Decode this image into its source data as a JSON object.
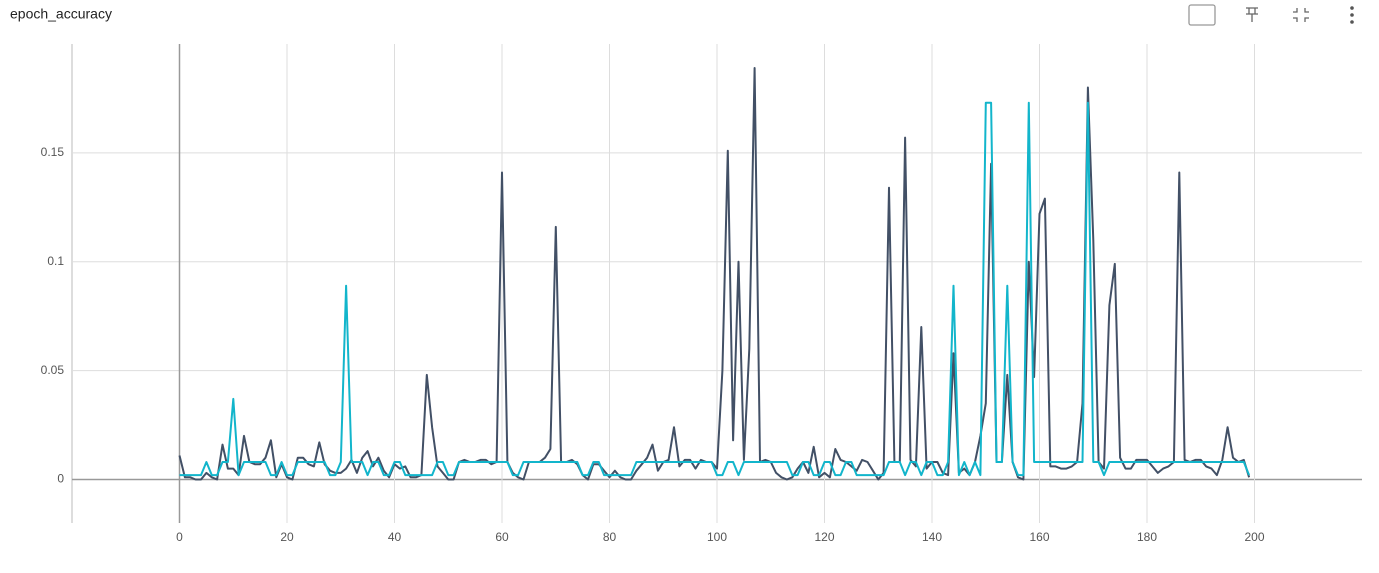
{
  "chart_data": {
    "type": "line",
    "title": "epoch_accuracy",
    "x": [
      0,
      1,
      2,
      3,
      4,
      5,
      6,
      7,
      8,
      9,
      10,
      11,
      12,
      13,
      14,
      15,
      16,
      17,
      18,
      19,
      20,
      21,
      22,
      23,
      24,
      25,
      26,
      27,
      28,
      29,
      30,
      31,
      32,
      33,
      34,
      35,
      36,
      37,
      38,
      39,
      40,
      41,
      42,
      43,
      44,
      45,
      46,
      47,
      48,
      49,
      50,
      51,
      52,
      53,
      54,
      55,
      56,
      57,
      58,
      59,
      60,
      61,
      62,
      63,
      64,
      65,
      66,
      67,
      68,
      69,
      70,
      71,
      72,
      73,
      74,
      75,
      76,
      77,
      78,
      79,
      80,
      81,
      82,
      83,
      84,
      85,
      86,
      87,
      88,
      89,
      90,
      91,
      92,
      93,
      94,
      95,
      96,
      97,
      98,
      99,
      100,
      101,
      102,
      103,
      104,
      105,
      106,
      107,
      108,
      109,
      110,
      111,
      112,
      113,
      114,
      115,
      116,
      117,
      118,
      119,
      120,
      121,
      122,
      123,
      124,
      125,
      126,
      127,
      128,
      129,
      130,
      131,
      132,
      133,
      134,
      135,
      136,
      137,
      138,
      139,
      140,
      141,
      142,
      143,
      144,
      145,
      146,
      147,
      148,
      149,
      150,
      151,
      152,
      153,
      154,
      155,
      156,
      157,
      158,
      159,
      160,
      161,
      162,
      163,
      164,
      165,
      166,
      167,
      168,
      169,
      170,
      171,
      172,
      173,
      174,
      175,
      176,
      177,
      178,
      179,
      180,
      181,
      182,
      183,
      184,
      185,
      186,
      187,
      188,
      189,
      190,
      191,
      192,
      193,
      194,
      195,
      196,
      197,
      198,
      199
    ],
    "series": [
      {
        "color": "#425066",
        "values": [
          0.011,
          0.001,
          0.001,
          0,
          0,
          0.003,
          0.001,
          0,
          0.016,
          0.005,
          0.005,
          0.002,
          0.02,
          0.008,
          0.007,
          0.007,
          0.01,
          0.018,
          0.001,
          0.007,
          0.001,
          0,
          0.01,
          0.01,
          0.007,
          0.006,
          0.017,
          0.007,
          0.004,
          0.003,
          0.003,
          0.005,
          0.009,
          0.003,
          0.01,
          0.013,
          0.006,
          0.01,
          0.004,
          0.001,
          0.007,
          0.005,
          0.006,
          0.001,
          0.001,
          0.002,
          0.048,
          0.024,
          0.006,
          0.003,
          0,
          0,
          0.008,
          0.009,
          0.008,
          0.008,
          0.009,
          0.009,
          0.007,
          0.008,
          0.141,
          0.008,
          0.003,
          0.001,
          0,
          0.008,
          0.008,
          0.008,
          0.01,
          0.014,
          0.116,
          0.008,
          0.008,
          0.009,
          0.007,
          0.002,
          0,
          0.007,
          0.007,
          0.004,
          0.001,
          0.004,
          0.001,
          0,
          0,
          0.004,
          0.007,
          0.01,
          0.016,
          0.004,
          0.008,
          0.009,
          0.024,
          0.006,
          0.009,
          0.009,
          0.005,
          0.009,
          0.008,
          0.008,
          0.005,
          0.05,
          0.151,
          0.018,
          0.1,
          0.009,
          0.06,
          0.189,
          0.008,
          0.009,
          0.008,
          0.003,
          0.001,
          0,
          0.001,
          0.005,
          0.008,
          0.003,
          0.015,
          0.001,
          0.003,
          0.001,
          0.014,
          0.009,
          0.008,
          0.006,
          0.004,
          0.009,
          0.008,
          0.004,
          0,
          0.003,
          0.134,
          0.008,
          0.008,
          0.157,
          0.009,
          0.006,
          0.07,
          0.005,
          0.008,
          0.008,
          0.003,
          0.002,
          0.058,
          0.003,
          0.005,
          0.002,
          0.008,
          0.02,
          0.035,
          0.145,
          0.008,
          0.008,
          0.048,
          0.008,
          0.001,
          0,
          0.1,
          0.047,
          0.122,
          0.129,
          0.006,
          0.006,
          0.005,
          0.005,
          0.006,
          0.008,
          0.035,
          0.18,
          0.11,
          0.008,
          0.005,
          0.08,
          0.099,
          0.01,
          0.005,
          0.005,
          0.009,
          0.009,
          0.009,
          0.006,
          0.003,
          0.005,
          0.006,
          0.008,
          0.141,
          0.009,
          0.008,
          0.009,
          0.009,
          0.006,
          0.005,
          0.002,
          0.009,
          0.024,
          0.01,
          0.008,
          0.009,
          0.001
        ]
      },
      {
        "color": "#12b5cb",
        "values": [
          0.002,
          0.002,
          0.002,
          0.002,
          0.002,
          0.008,
          0.002,
          0.002,
          0.008,
          0.008,
          0.037,
          0.002,
          0.008,
          0.008,
          0.008,
          0.008,
          0.008,
          0.002,
          0.002,
          0.008,
          0.002,
          0.002,
          0.008,
          0.008,
          0.008,
          0.008,
          0.008,
          0.008,
          0.002,
          0.002,
          0.008,
          0.089,
          0.008,
          0.008,
          0.008,
          0.002,
          0.008,
          0.008,
          0.002,
          0.002,
          0.008,
          0.008,
          0.002,
          0.002,
          0.002,
          0.002,
          0.002,
          0.002,
          0.008,
          0.008,
          0.002,
          0.002,
          0.008,
          0.008,
          0.008,
          0.008,
          0.008,
          0.008,
          0.008,
          0.008,
          0.008,
          0.008,
          0.002,
          0.002,
          0.008,
          0.008,
          0.008,
          0.008,
          0.008,
          0.008,
          0.008,
          0.008,
          0.008,
          0.008,
          0.008,
          0.002,
          0.002,
          0.008,
          0.008,
          0.002,
          0.002,
          0.002,
          0.002,
          0.002,
          0.002,
          0.008,
          0.008,
          0.008,
          0.008,
          0.008,
          0.008,
          0.008,
          0.008,
          0.008,
          0.008,
          0.008,
          0.008,
          0.008,
          0.008,
          0.008,
          0.002,
          0.002,
          0.008,
          0.008,
          0.002,
          0.008,
          0.008,
          0.008,
          0.008,
          0.008,
          0.008,
          0.008,
          0.008,
          0.008,
          0.002,
          0.002,
          0.008,
          0.008,
          0.002,
          0.002,
          0.008,
          0.008,
          0.002,
          0.002,
          0.008,
          0.008,
          0.002,
          0.002,
          0.002,
          0.002,
          0.002,
          0.002,
          0.008,
          0.008,
          0.008,
          0.002,
          0.008,
          0.008,
          0.002,
          0.008,
          0.008,
          0.002,
          0.002,
          0.008,
          0.089,
          0.002,
          0.008,
          0.002,
          0.008,
          0.002,
          0.173,
          0.173,
          0.008,
          0.008,
          0.089,
          0.008,
          0.002,
          0.002,
          0.173,
          0.008,
          0.008,
          0.008,
          0.008,
          0.008,
          0.008,
          0.008,
          0.008,
          0.008,
          0.008,
          0.173,
          0.008,
          0.008,
          0.002,
          0.008,
          0.008,
          0.008,
          0.008,
          0.008,
          0.008,
          0.008,
          0.008,
          0.008,
          0.008,
          0.008,
          0.008,
          0.008,
          0.008,
          0.008,
          0.008,
          0.008,
          0.008,
          0.008,
          0.008,
          0.008,
          0.008,
          0.008,
          0.008,
          0.008,
          0.008,
          0.002
        ]
      }
    ],
    "xlim": [
      -20,
      220
    ],
    "xticks": [
      0,
      20,
      40,
      60,
      80,
      100,
      120,
      140,
      160,
      180,
      200
    ],
    "ylim": [
      -0.02,
      0.2
    ],
    "yticks": [
      0,
      0.05,
      0.1,
      0.15
    ],
    "grid": true
  }
}
